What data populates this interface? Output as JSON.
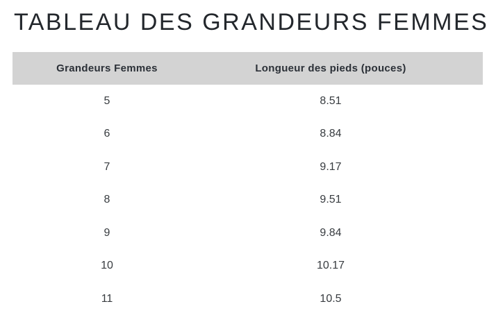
{
  "page": {
    "title": "TABLEAU DES GRANDEURS FEMMES"
  },
  "table": {
    "columns": [
      "Grandeurs Femmes",
      "Longueur des pieds (pouces)"
    ],
    "rows": [
      [
        "5",
        "8.51"
      ],
      [
        "6",
        "8.84"
      ],
      [
        "7",
        "9.17"
      ],
      [
        "8",
        "9.51"
      ],
      [
        "9",
        "9.84"
      ],
      [
        "10",
        "10.17"
      ],
      [
        "11",
        "10.5"
      ]
    ]
  },
  "colors": {
    "header_background": "#d3d3d3",
    "title_text": "#23272c",
    "header_text": "#2b3037",
    "cell_text": "#383c40",
    "page_background": "#ffffff"
  }
}
